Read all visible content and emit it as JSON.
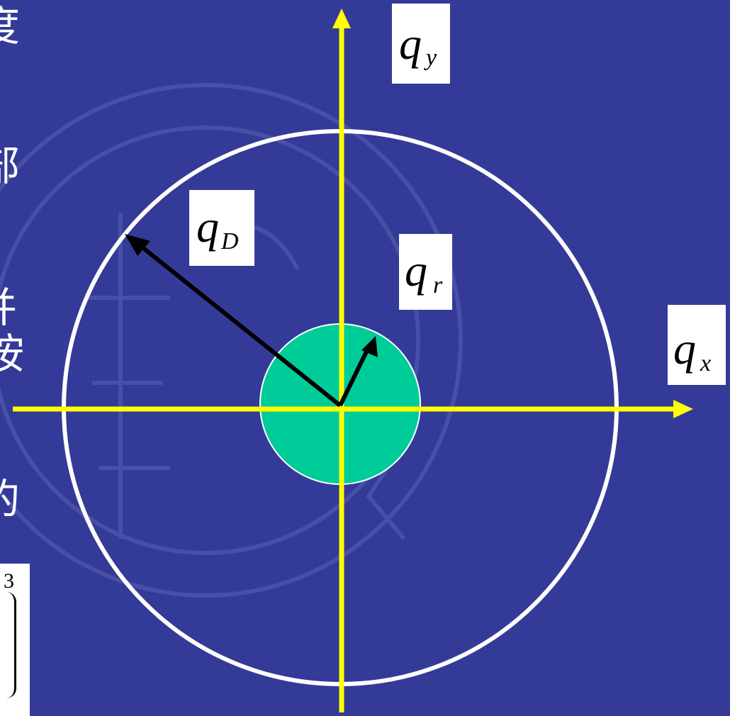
{
  "colors": {
    "background": "#333a97",
    "axis": "#ffff00",
    "outer_circle": "#ffffff",
    "inner_disk": "#00cc99",
    "vector": "#000000",
    "label_bg": "#ffffff"
  },
  "labels": {
    "qy": {
      "main": "q",
      "sub": "y"
    },
    "qx": {
      "main": "q",
      "sub": "x"
    },
    "qD": {
      "main": "q",
      "sub": "D"
    },
    "qr": {
      "main": "q",
      "sub": "r"
    }
  },
  "side_text": [
    "度",
    "部",
    "并",
    "按",
    "的"
  ],
  "cut_box": {
    "digit": "3"
  }
}
